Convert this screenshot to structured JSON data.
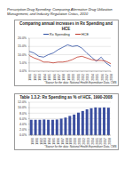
{
  "header": "Prescription Drug Spending: Comparing Alternative Drug Utilization Management, and Industry Regulation Critics, 2010",
  "chart_data": [
    {
      "type": "line",
      "title": "Comparing annual increases in Rx Spending and HCE",
      "categories": [
        "1991",
        "1992",
        "1993",
        "1994",
        "1995",
        "1996",
        "1997",
        "1998",
        "1999",
        "2000",
        "2001",
        "2002",
        "2003",
        "2004",
        "2005",
        "2006",
        "2007",
        "2008"
      ],
      "series": [
        {
          "name": "Rx Spending",
          "color": "#2e4fa3",
          "values": [
            12,
            11,
            9,
            8.5,
            10,
            11,
            13,
            14.5,
            16,
            15,
            15.5,
            14,
            11,
            8.5,
            6,
            8.5,
            5,
            3
          ]
        },
        {
          "name": "HCE",
          "color": "#c0392b",
          "values": [
            9.5,
            8,
            7,
            5.5,
            5.5,
            5,
            5.5,
            5.5,
            6,
            7,
            8.5,
            9,
            8,
            7,
            6.5,
            6.5,
            6,
            4.5
          ]
        }
      ],
      "ylim": [
        0,
        20
      ],
      "yticks": [
        {
          "value": 0,
          "label": "0.0%"
        },
        {
          "value": 5,
          "label": "5.0%"
        },
        {
          "value": 10,
          "label": "10.0%"
        },
        {
          "value": 15,
          "label": "15.0%"
        },
        {
          "value": 20,
          "label": "20.0%"
        }
      ],
      "grid": true,
      "legend": "top",
      "note": "*Source for the data: National Health Expenditure Data, CMS"
    },
    {
      "type": "bar",
      "title": "Table 1.3.2: Rx Spending as % of HCE, 1990-2008",
      "categories": [
        "1990",
        "1991",
        "1992",
        "1993",
        "1994",
        "1995",
        "1996",
        "1997",
        "1998",
        "1999",
        "2000",
        "2001",
        "2002",
        "2003",
        "2004",
        "2005",
        "2006",
        "2007",
        "2008"
      ],
      "values": [
        5.6,
        5.6,
        5.6,
        5.7,
        5.6,
        5.6,
        5.7,
        6,
        6.4,
        7,
        7.5,
        8.2,
        8.8,
        9.4,
        9.8,
        10.1,
        10,
        10.1,
        10
      ],
      "color": "#3b4fa0",
      "ylim": [
        0,
        12
      ],
      "yticks": [
        {
          "value": 0,
          "label": "0.0%"
        },
        {
          "value": 2,
          "label": "2.0%"
        },
        {
          "value": 4,
          "label": "4.0%"
        },
        {
          "value": 6,
          "label": "6.0%"
        },
        {
          "value": 8,
          "label": "8.0%"
        },
        {
          "value": 10,
          "label": "10.0%"
        },
        {
          "value": 12,
          "label": "12.0%"
        }
      ],
      "grid": true,
      "note": "*Source for the data: National Health Expenditure Data, CMS"
    }
  ]
}
